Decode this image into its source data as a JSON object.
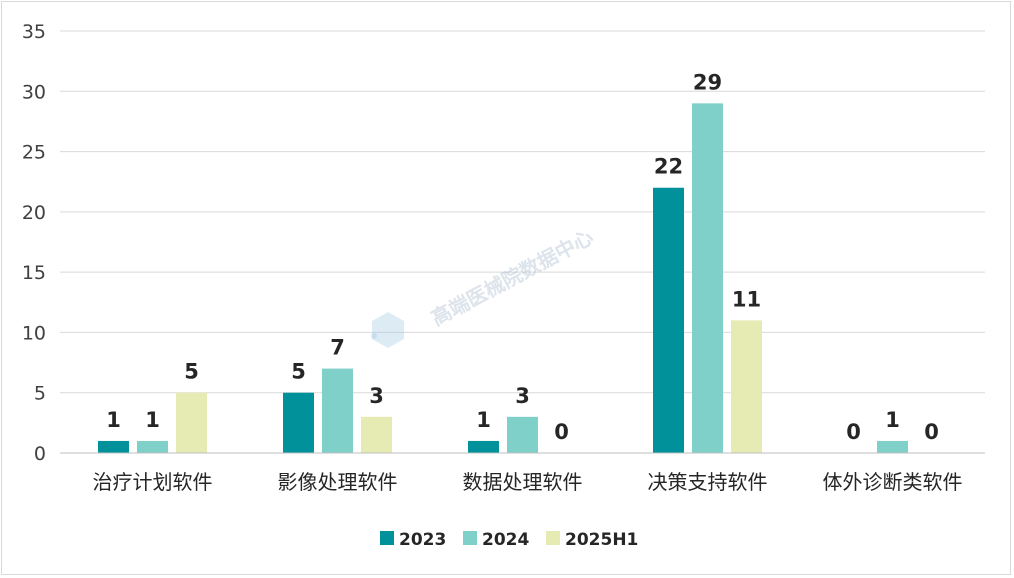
{
  "chart_data": {
    "type": "bar",
    "title": "",
    "xlabel": "",
    "ylabel": "",
    "ylim": [
      0,
      35
    ],
    "yticks": [
      0,
      5,
      10,
      15,
      20,
      25,
      30,
      35
    ],
    "grid": true,
    "legend_position": "bottom",
    "categories": [
      "治疗计划软件",
      "影像处理软件",
      "数据处理软件",
      "决策支持软件",
      "体外诊断类软件"
    ],
    "series": [
      {
        "name": "2023",
        "color": "#00919a",
        "values": [
          1,
          5,
          1,
          22,
          0
        ]
      },
      {
        "name": "2024",
        "color": "#7fd0c9",
        "values": [
          1,
          7,
          3,
          29,
          1
        ]
      },
      {
        "name": "2025H1",
        "color": "#e6ebb3",
        "values": [
          5,
          3,
          0,
          11,
          0
        ]
      }
    ]
  },
  "watermark": {
    "text": "高端医械院数据中心"
  }
}
